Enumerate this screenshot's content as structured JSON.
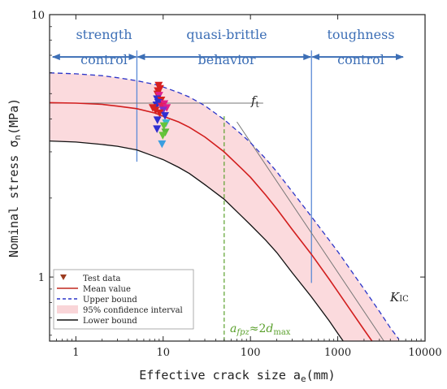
{
  "chart_data": {
    "type": "scatter",
    "x_axis": {
      "scale": "log",
      "range": [
        0.5,
        10000
      ],
      "ticks": [
        1,
        10,
        100,
        1000,
        10000
      ],
      "tick_labels": [
        "1",
        "10",
        "100",
        "1000",
        "10000"
      ],
      "label": "Effective crack size a",
      "label_sub": "e",
      "label_unit": "(mm)"
    },
    "y_axis": {
      "scale": "log",
      "range": [
        0.57,
        10
      ],
      "ticks": [
        1,
        10
      ],
      "tick_labels": [
        "1",
        "10"
      ],
      "label": "Nominal stress σ",
      "label_sub": "n",
      "label_unit": "(MPa)"
    },
    "regions": [
      {
        "top": "strength",
        "bottom": "control",
        "x_from": 0.5,
        "x_to": 5
      },
      {
        "top": "quasi-brittle",
        "bottom": "behavior",
        "x_from": 5,
        "x_to": 500
      },
      {
        "top": "toughness",
        "bottom": "control",
        "x_from": 500,
        "x_to": 10000
      }
    ],
    "region_boundaries_x": [
      5,
      500
    ],
    "region_arrow_y": 6.9,
    "curves": {
      "ft": 4.6,
      "mean_value": {
        "x": [
          0.5,
          1,
          2,
          3,
          5,
          8,
          10,
          15,
          20,
          30,
          50,
          80,
          100,
          150,
          200,
          300,
          500,
          800,
          1000,
          2000,
          3000,
          3500
        ],
        "y": [
          4.62,
          4.6,
          4.55,
          4.48,
          4.38,
          4.22,
          4.1,
          3.9,
          3.72,
          3.42,
          3.0,
          2.58,
          2.4,
          2.05,
          1.82,
          1.52,
          1.22,
          0.98,
          0.88,
          0.63,
          0.52,
          0.48
        ]
      },
      "upper_bound": {
        "x": [
          0.5,
          1,
          2,
          3,
          5,
          8,
          10,
          15,
          20,
          30,
          50,
          80,
          100,
          150,
          200,
          300,
          500,
          800,
          1000,
          2000,
          3000,
          4000,
          5000
        ],
        "y": [
          6.0,
          5.95,
          5.85,
          5.75,
          5.6,
          5.42,
          5.3,
          5.05,
          4.85,
          4.5,
          3.98,
          3.48,
          3.25,
          2.82,
          2.52,
          2.12,
          1.7,
          1.38,
          1.25,
          0.9,
          0.74,
          0.64,
          0.58
        ]
      },
      "lower_bound": {
        "x": [
          0.5,
          1,
          2,
          3,
          5,
          8,
          10,
          15,
          20,
          30,
          50,
          80,
          100,
          150,
          200,
          300,
          500,
          800,
          1000,
          2000,
          2500
        ],
        "y": [
          3.3,
          3.27,
          3.2,
          3.15,
          3.05,
          2.88,
          2.8,
          2.62,
          2.48,
          2.25,
          1.98,
          1.7,
          1.58,
          1.38,
          1.24,
          1.04,
          0.84,
          0.68,
          0.61,
          0.44,
          0.4
        ]
      },
      "kic_line": {
        "x": [
          70,
          3500
        ],
        "y": [
          3.9,
          0.56
        ]
      },
      "afpz_x": 50
    },
    "test_data": [
      {
        "x": 8.9,
        "y": 5.35,
        "color": "#d62020"
      },
      {
        "x": 9.2,
        "y": 5.2,
        "color": "#d62020"
      },
      {
        "x": 8.7,
        "y": 5.1,
        "color": "#d62020"
      },
      {
        "x": 8.6,
        "y": 4.95,
        "color": "#d62020"
      },
      {
        "x": 9.0,
        "y": 4.9,
        "color": "#e0208a"
      },
      {
        "x": 8.5,
        "y": 4.75,
        "color": "#2f2fd0"
      },
      {
        "x": 9.5,
        "y": 4.7,
        "color": "#d62020"
      },
      {
        "x": 8.8,
        "y": 4.6,
        "color": "#2f2fd0"
      },
      {
        "x": 10.3,
        "y": 4.55,
        "color": "#e0208a"
      },
      {
        "x": 8.4,
        "y": 4.5,
        "color": "#2f2fd0"
      },
      {
        "x": 9.6,
        "y": 4.45,
        "color": "#e02060"
      },
      {
        "x": 7.6,
        "y": 4.4,
        "color": "#d62020"
      },
      {
        "x": 11.0,
        "y": 4.4,
        "color": "#e0208a"
      },
      {
        "x": 8.2,
        "y": 4.3,
        "color": "#d62020"
      },
      {
        "x": 10.0,
        "y": 4.3,
        "color": "#7b2fd0"
      },
      {
        "x": 9.1,
        "y": 4.2,
        "color": "#d62020"
      },
      {
        "x": 10.5,
        "y": 4.1,
        "color": "#2f2fd0"
      },
      {
        "x": 8.6,
        "y": 3.95,
        "color": "#2f2fd0"
      },
      {
        "x": 10.8,
        "y": 3.85,
        "color": "#3ab7d0"
      },
      {
        "x": 10.2,
        "y": 3.75,
        "color": "#66c43a"
      },
      {
        "x": 8.5,
        "y": 3.65,
        "color": "#2f2fd0"
      },
      {
        "x": 10.6,
        "y": 3.55,
        "color": "#5ab83a"
      },
      {
        "x": 9.9,
        "y": 3.45,
        "color": "#66c43a"
      },
      {
        "x": 9.7,
        "y": 3.2,
        "color": "#3a9ee0"
      }
    ],
    "annotations": {
      "ft": {
        "main": "f",
        "sub": "t"
      },
      "kic": {
        "main": "K",
        "sub": "IC"
      },
      "afpz": {
        "main": "a",
        "sub": "fpz",
        "rel": "≈2",
        "d": "d",
        "d_sub": "max"
      }
    },
    "legend": {
      "placement": "bottom-left",
      "entries": [
        {
          "label": "Test data",
          "kind": "marker",
          "color": "#9c3b1f"
        },
        {
          "label": "Mean value",
          "kind": "line",
          "color": "#c0281e",
          "dash": false
        },
        {
          "label": "Upper bound",
          "kind": "line",
          "color": "#2b35c9",
          "dash": true
        },
        {
          "label": "95% confidence interval",
          "kind": "fill",
          "color": "#f9d5d8"
        },
        {
          "label": "Lower bound",
          "kind": "line",
          "color": "#111111",
          "dash": false
        }
      ]
    },
    "colors": {
      "mean": "#d21e1e",
      "upper": "#2b35c9",
      "lower": "#111111",
      "ci_fill": "#fbdadd",
      "boundary": "#5b8ad6",
      "arrow": "#3d6fb6",
      "afpz": "#5aa02c",
      "ft_line": "#777777",
      "kic_line": "#777777"
    },
    "grid": false
  }
}
